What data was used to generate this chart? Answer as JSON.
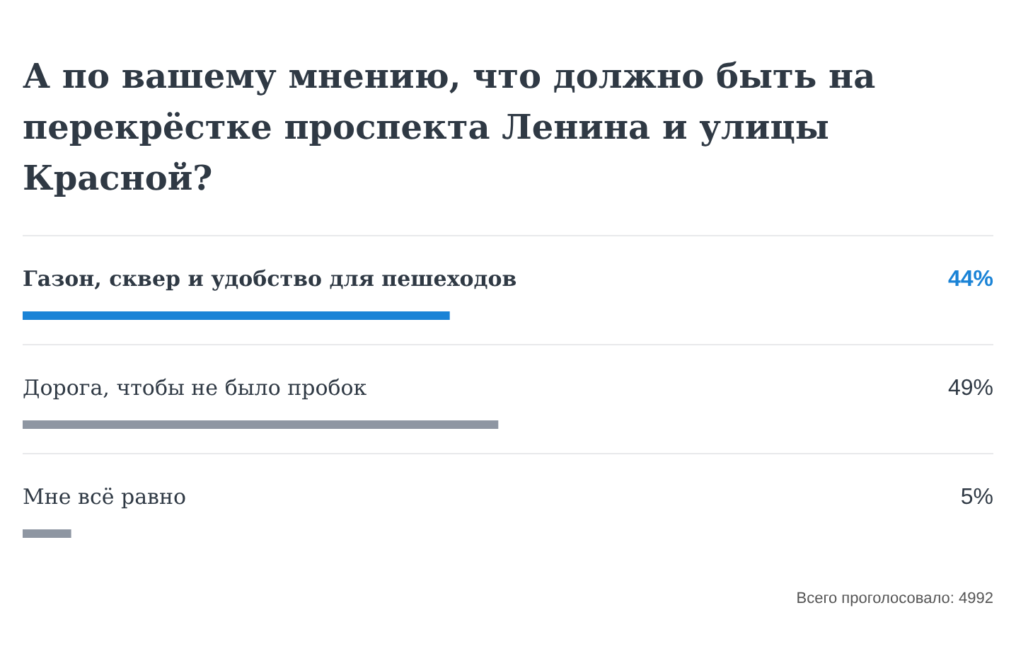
{
  "chart_data": {
    "type": "bar",
    "orientation": "horizontal",
    "title": "А по вашему мнению, что должно быть на перекрёстке проспекта Ленина и улицы Красной?",
    "categories": [
      "Газон, сквер и удобство для пешеходов",
      "Дорога, чтобы не было пробок",
      "Мне всё равно"
    ],
    "values": [
      44,
      49,
      5
    ],
    "colors": [
      "#1a83d6",
      "#8e96a2",
      "#8e96a2"
    ],
    "value_labels": [
      "44%",
      "49%",
      "5%"
    ],
    "xlim": [
      0,
      100
    ],
    "tick_labels": "y",
    "annotations": [
      "Всего проголосовало: 4992"
    ]
  }
}
